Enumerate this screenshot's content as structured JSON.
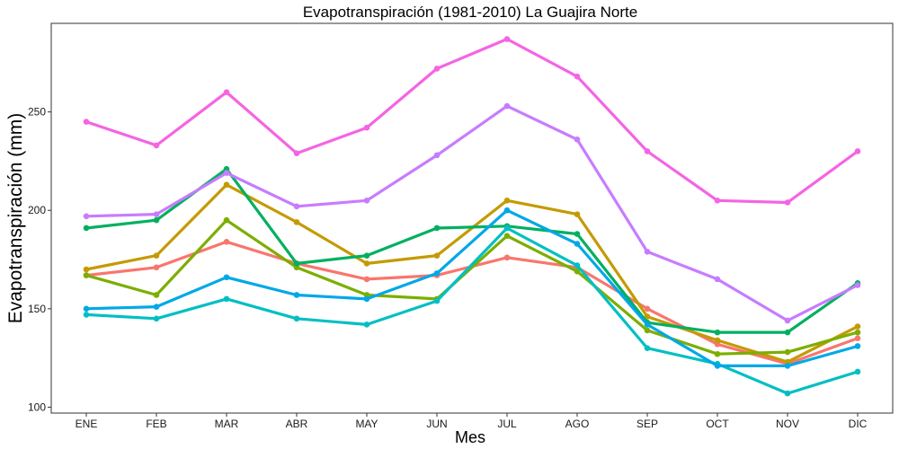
{
  "chart_data": {
    "type": "line",
    "title": "Evapotranspiración (1981-2010)  La Guajira Norte",
    "xlabel": "Mes",
    "ylabel": "Evapotranspiración (mm)",
    "categories": [
      "ENE",
      "FEB",
      "MAR",
      "ABR",
      "MAY",
      "JUN",
      "JUL",
      "AGO",
      "SEP",
      "OCT",
      "NOV",
      "DIC"
    ],
    "ylim": [
      97,
      295
    ],
    "yticks": [
      100,
      150,
      200,
      250
    ],
    "grid": false,
    "legend": "none",
    "series": [
      {
        "color": "#F8766D",
        "values": [
          167,
          171,
          184,
          173,
          165,
          167,
          176,
          171,
          150,
          132,
          122,
          135
        ]
      },
      {
        "color": "#C49A00",
        "values": [
          170,
          177,
          213,
          194,
          173,
          177,
          205,
          198,
          146,
          134,
          123,
          141
        ]
      },
      {
        "color": "#7CAE00",
        "values": [
          167,
          157,
          195,
          171,
          157,
          155,
          187,
          169,
          139,
          127,
          128,
          138
        ]
      },
      {
        "color": "#00B060",
        "values": [
          191,
          195,
          221,
          173,
          177,
          191,
          192,
          188,
          143,
          138,
          138,
          163
        ]
      },
      {
        "color": "#00BFC4",
        "values": [
          147,
          145,
          155,
          145,
          142,
          154,
          191,
          172,
          130,
          122,
          107,
          118
        ]
      },
      {
        "color": "#00A8E6",
        "values": [
          150,
          151,
          166,
          157,
          155,
          168,
          200,
          183,
          142,
          121,
          121,
          131
        ]
      },
      {
        "color": "#C77CFF",
        "values": [
          197,
          198,
          219,
          202,
          205,
          228,
          253,
          236,
          179,
          165,
          144,
          162
        ]
      },
      {
        "color": "#F564E3",
        "values": [
          245,
          233,
          260,
          229,
          242,
          272,
          287,
          268,
          230,
          205,
          204,
          230
        ]
      }
    ]
  }
}
